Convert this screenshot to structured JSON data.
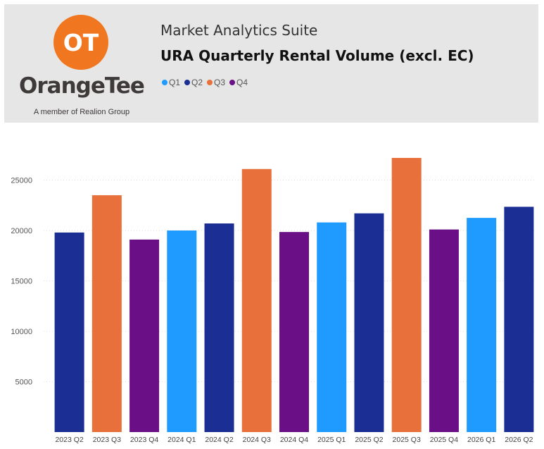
{
  "header": {
    "brand_name": "OrangeTee",
    "brand_tagline": "A member of Realion Group",
    "logo_text": "OT",
    "suite_label": "Market Analytics Suite",
    "chart_title": "URA Quarterly Rental Volume (excl. EC)"
  },
  "colors": {
    "brand_orange": "#f0761f",
    "Q1": "#1f9bff",
    "Q2": "#1a2e94",
    "Q3": "#e8703a",
    "Q4": "#6a0f86"
  },
  "legend": [
    {
      "label": "Q1",
      "color": "#1f9bff"
    },
    {
      "label": "Q2",
      "color": "#1a2e94"
    },
    {
      "label": "Q3",
      "color": "#e8703a"
    },
    {
      "label": "Q4",
      "color": "#6a0f86"
    }
  ],
  "chart_data": {
    "type": "bar",
    "title": "URA Quarterly Rental Volume (excl. EC)",
    "xlabel": "",
    "ylabel": "",
    "categories": [
      "2023 Q2",
      "2023 Q3",
      "2023 Q4",
      "2024 Q1",
      "2024 Q2",
      "2024 Q3",
      "2024 Q4",
      "2025 Q1",
      "2025 Q2",
      "2025 Q3",
      "2025 Q4",
      "2026 Q1",
      "2026 Q2"
    ],
    "quarters": [
      "Q2",
      "Q3",
      "Q4",
      "Q1",
      "Q2",
      "Q3",
      "Q4",
      "Q1",
      "Q2",
      "Q3",
      "Q4",
      "Q1",
      "Q2"
    ],
    "values": [
      19800,
      23500,
      19100,
      20000,
      20700,
      26100,
      19850,
      20800,
      21700,
      27200,
      20100,
      21250,
      22350
    ],
    "ylim": [
      0,
      28000
    ],
    "yticks": [
      5000,
      10000,
      15000,
      20000,
      25000
    ],
    "grid": true,
    "legend_position": "top-left"
  }
}
